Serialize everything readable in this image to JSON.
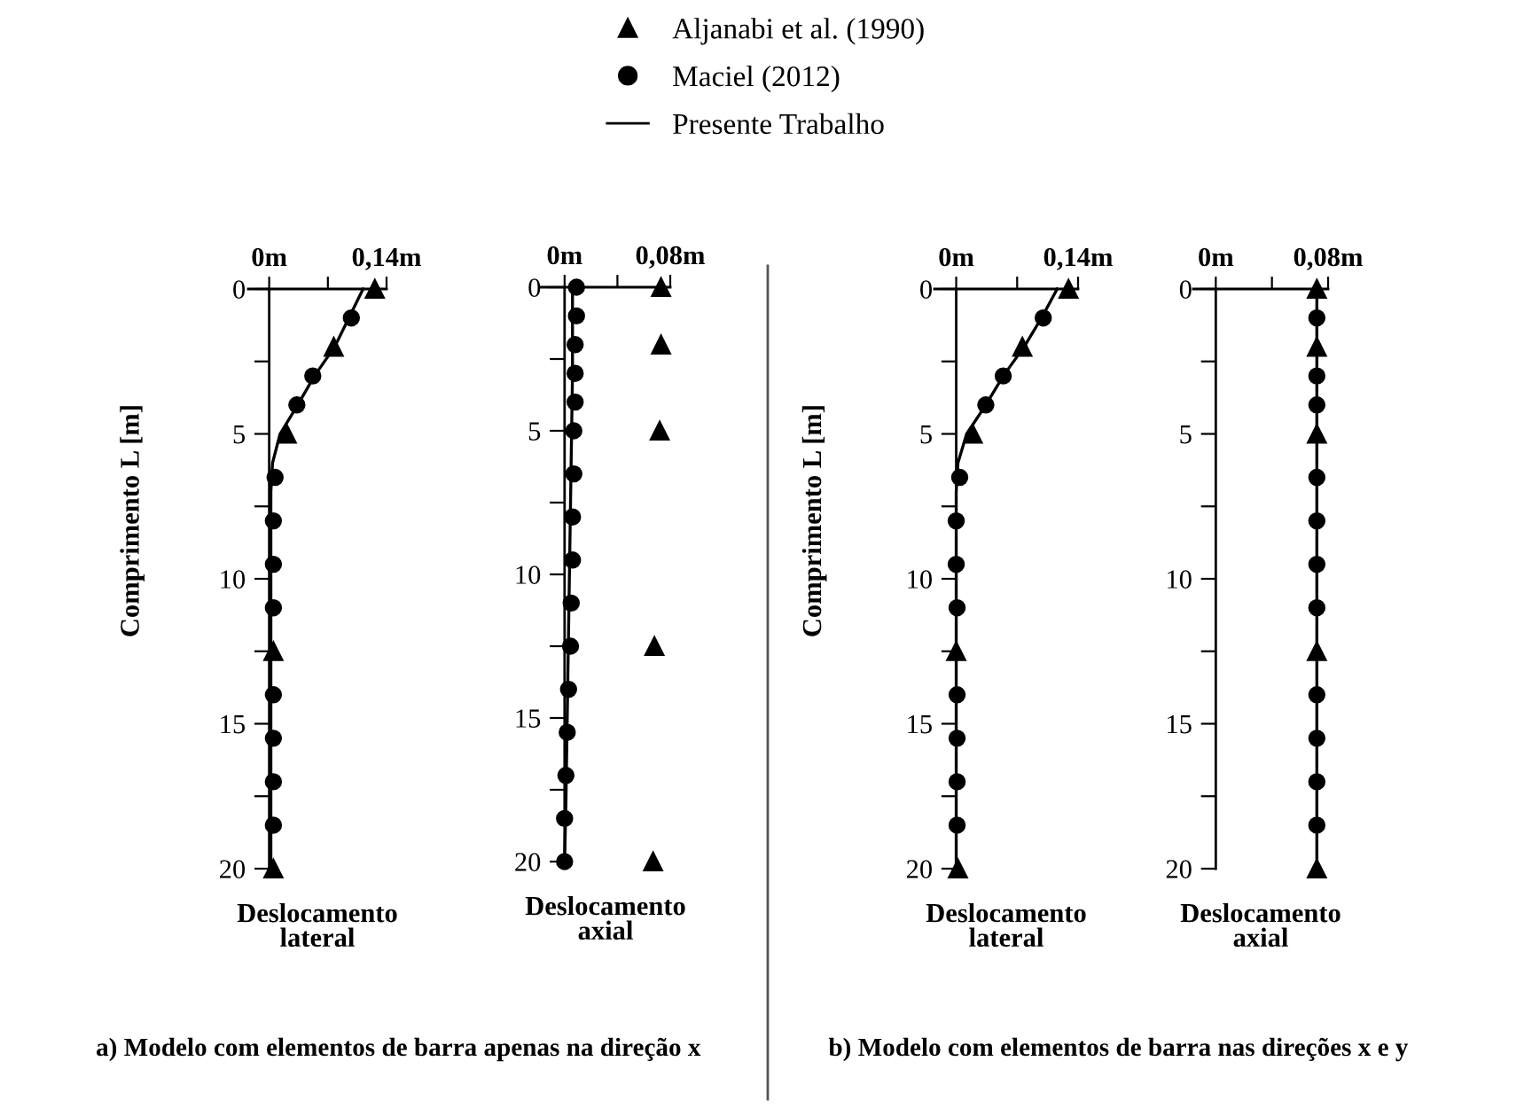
{
  "chart_data": [
    {
      "type": "scatter",
      "legend": "top",
      "ylabel": "Comprimento L [m]",
      "xlabel": "Deslocamento\nlateral",
      "xlim": [
        -0.025,
        0.14
      ],
      "ylim": [
        20,
        0
      ],
      "xticks": [
        {
          "value": 0,
          "label": "0m"
        },
        {
          "value": 0.07,
          "label": null
        },
        {
          "value": 0.14,
          "label": "0,14m"
        }
      ],
      "yticks": [
        0,
        {
          "value": 2.5,
          "label": null
        },
        5,
        {
          "value": 7.5,
          "label": null
        },
        10,
        {
          "value": 12.5,
          "label": null
        },
        15,
        {
          "value": 17.5,
          "label": null
        },
        20
      ],
      "annotations": [
        "a) Modelo com elementos de barra apenas na direção x"
      ],
      "series": [
        {
          "name": "Aljanabi et al. (1990)",
          "type": "scatter",
          "marker": "triangle",
          "color": "#000000",
          "x": [
            0.126,
            0.077,
            0.021,
            0.005,
            0.005
          ],
          "values": [
            0,
            2,
            5,
            12.5,
            20
          ]
        },
        {
          "name": "Maciel (2012)",
          "type": "scatter",
          "marker": "circle",
          "color": "#000000",
          "x": [
            0.098,
            0.052,
            0.033,
            0.007,
            0.005,
            0.005,
            0.005,
            0.005,
            0.005,
            0.005,
            0.005
          ],
          "values": [
            1,
            3,
            4,
            6.5,
            8,
            9.5,
            11,
            14,
            15.5,
            17,
            18.5
          ]
        },
        {
          "name": "Presente Trabalho",
          "type": "line",
          "color": "#000000",
          "x": [
            0.112,
            0.095,
            0.078,
            0.054,
            0.034,
            0.013,
            0.004,
            0.002,
            0.002
          ],
          "values": [
            0,
            1,
            2,
            3,
            4,
            5,
            6,
            7,
            20
          ]
        }
      ]
    },
    {
      "type": "scatter",
      "legend": false,
      "xlabel": "Deslocamento\naxial",
      "xlim": [
        -0.018,
        0.08
      ],
      "ylim": [
        20,
        0
      ],
      "xticks": [
        {
          "value": 0,
          "label": "0m"
        },
        {
          "value": 0.04,
          "label": null
        },
        {
          "value": 0.08,
          "label": "0,08m"
        }
      ],
      "yticks": [
        0,
        {
          "value": 2.5,
          "label": null
        },
        5,
        {
          "value": 7.5,
          "label": null
        },
        10,
        {
          "value": 12.5,
          "label": null
        },
        15,
        {
          "value": 17.5,
          "label": null
        },
        20
      ],
      "series": [
        {
          "type": "scatter",
          "marker": "triangle",
          "color": "#000000",
          "x": [
            0.073,
            0.073,
            0.072,
            0.068,
            0.067
          ],
          "values": [
            0,
            2,
            5,
            12.5,
            20
          ]
        },
        {
          "type": "scatter",
          "marker": "circle",
          "color": "#000000",
          "x": [
            0.009,
            0.009,
            0.008,
            0.008,
            0.008,
            0.007,
            0.007,
            0.006,
            0.006,
            0.005,
            0.0045,
            0.003,
            0.002,
            0.001,
            0.0,
            0.0
          ],
          "values": [
            0,
            1,
            2,
            3,
            4,
            5,
            6.5,
            8,
            9.5,
            11,
            12.5,
            14,
            15.5,
            17,
            18.5,
            20
          ]
        },
        {
          "type": "line",
          "color": "#000000",
          "x": [
            0.006,
            0.006,
            0.005,
            0.004,
            0.003,
            0.002,
            0.001,
            0.0
          ],
          "values": [
            0,
            3,
            6,
            9,
            12,
            15,
            18,
            20
          ]
        }
      ]
    },
    {
      "type": "scatter",
      "legend": false,
      "ylabel": "Comprimento L [m]",
      "xlabel": "Deslocamento\nlateral",
      "xlim": [
        -0.025,
        0.14
      ],
      "ylim": [
        20,
        0
      ],
      "xticks": [
        {
          "value": 0,
          "label": "0m"
        },
        {
          "value": 0.07,
          "label": null
        },
        {
          "value": 0.14,
          "label": "0,14m"
        }
      ],
      "yticks": [
        0,
        {
          "value": 2.5,
          "label": null
        },
        5,
        {
          "value": 7.5,
          "label": null
        },
        10,
        {
          "value": 12.5,
          "label": null
        },
        15,
        {
          "value": 17.5,
          "label": null
        },
        20
      ],
      "annotations": [
        "b) Modelo com elementos de barra nas direções x e y"
      ],
      "series": [
        {
          "type": "scatter",
          "marker": "triangle",
          "color": "#000000",
          "x": [
            0.129,
            0.076,
            0.019,
            0.0,
            0.002
          ],
          "values": [
            0,
            2,
            5,
            12.5,
            20
          ]
        },
        {
          "type": "scatter",
          "marker": "circle",
          "color": "#000000",
          "x": [
            0.1,
            0.054,
            0.034,
            0.004,
            0.0,
            0.0,
            0.001,
            0.001,
            0.001,
            0.001,
            0.001
          ],
          "values": [
            1,
            3,
            4,
            6.5,
            8,
            9.5,
            11,
            14,
            15.5,
            17,
            18.5
          ]
        },
        {
          "type": "line",
          "color": "#000000",
          "x": [
            0.116,
            0.098,
            0.078,
            0.054,
            0.034,
            0.012,
            0.002,
            0.0,
            0.0
          ],
          "values": [
            0,
            1,
            2,
            3,
            4,
            5,
            6,
            7,
            20
          ]
        }
      ]
    },
    {
      "type": "scatter",
      "legend": false,
      "xlabel": "Deslocamento\naxial",
      "xlim": [
        -0.016,
        0.08
      ],
      "ylim": [
        20,
        0
      ],
      "xticks": [
        {
          "value": 0,
          "label": "0m"
        },
        {
          "value": 0.04,
          "label": null
        },
        {
          "value": 0.08,
          "label": "0,08m"
        }
      ],
      "yticks": [
        0,
        {
          "value": 2.5,
          "label": null
        },
        5,
        {
          "value": 7.5,
          "label": null
        },
        10,
        {
          "value": 12.5,
          "label": null
        },
        15,
        {
          "value": 17.5,
          "label": null
        },
        20
      ],
      "series": [
        {
          "type": "scatter",
          "marker": "triangle",
          "color": "#000000",
          "x": [
            0.072,
            0.072,
            0.072,
            0.072,
            0.072
          ],
          "values": [
            0,
            2,
            5,
            12.5,
            20
          ]
        },
        {
          "type": "scatter",
          "marker": "circle",
          "color": "#000000",
          "x": [
            0.072,
            0.072,
            0.072,
            0.072,
            0.072,
            0.072,
            0.072,
            0.072,
            0.072,
            0.072,
            0.072
          ],
          "values": [
            1,
            3,
            4,
            6.5,
            8,
            9.5,
            11,
            14,
            15.5,
            17,
            18.5
          ]
        },
        {
          "type": "line",
          "color": "#000000",
          "x": [
            0.072,
            0.072
          ],
          "values": [
            0,
            20
          ]
        }
      ]
    }
  ]
}
